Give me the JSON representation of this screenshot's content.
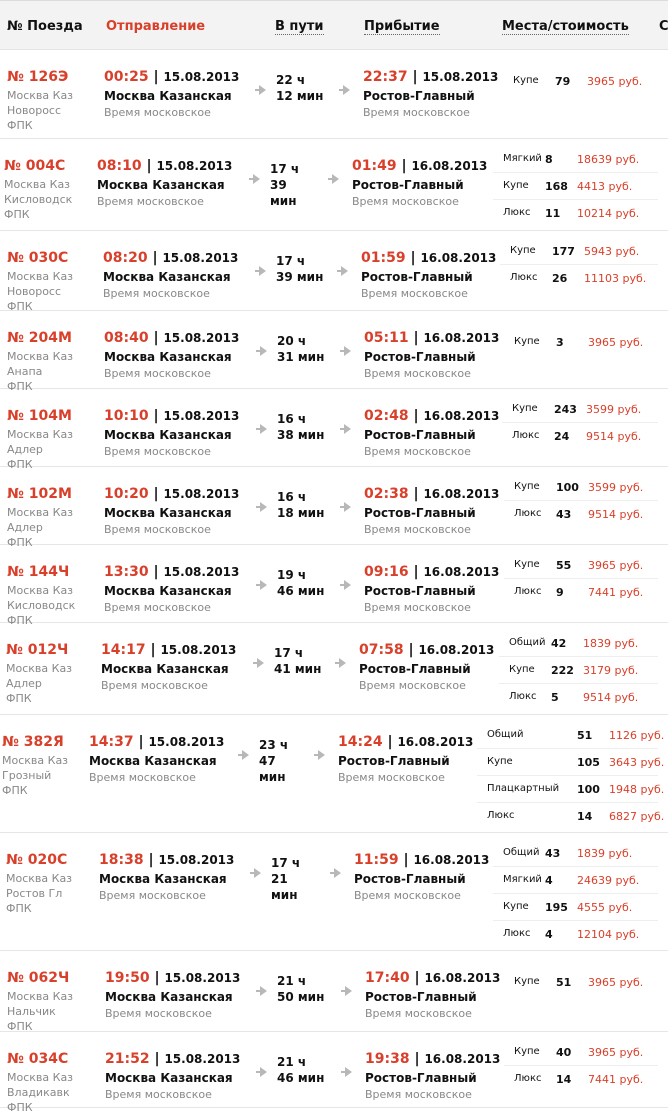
{
  "header": {
    "train": "№ Поезда",
    "departure": "Отправление",
    "travel": "В пути",
    "arrival": "Прибытие",
    "seats": "Места/стоимость",
    "extra": "С"
  },
  "colors": {
    "accent": "#d8402b",
    "muted": "#888888",
    "header_bg": "#f3f3f3"
  },
  "icons": {
    "duration_arrow": "arrow-right-icon"
  },
  "trains": [
    {
      "number": "№ 126Э",
      "route": [
        "Москва Каз",
        "Новоросс",
        "ФПК"
      ],
      "dep_time": "00:25",
      "dep_date": "15.08.2013",
      "dep_station": "Москва Казанская",
      "dep_tz": "Время московское",
      "travel": [
        "22 ч",
        "12 мин"
      ],
      "arr_time": "22:37",
      "arr_date": "15.08.2013",
      "arr_station": "Ростов-Главный",
      "arr_tz": "Время московское",
      "seats": [
        {
          "type": "Купе",
          "count": "79",
          "price": "3965 руб."
        }
      ]
    },
    {
      "number": "№ 004С",
      "route": [
        "Москва Каз",
        "Кисловодск",
        "ФПК"
      ],
      "dep_time": "08:10",
      "dep_date": "15.08.2013",
      "dep_station": "Москва Казанская",
      "dep_tz": "Время московское",
      "travel": [
        "17 ч",
        "39",
        "мин"
      ],
      "arr_time": "01:49",
      "arr_date": "16.08.2013",
      "arr_station": "Ростов-Главный",
      "arr_tz": "Время московское",
      "seats": [
        {
          "type": "Мягкий",
          "count": "8",
          "price": "18639 руб."
        },
        {
          "type": "Купе",
          "count": "168",
          "price": "4413 руб."
        },
        {
          "type": "Люкс",
          "count": "11",
          "price": "10214 руб."
        }
      ]
    },
    {
      "number": "№ 030С",
      "route": [
        "Москва Каз",
        "Новоросс",
        "ФПК"
      ],
      "dep_time": "08:20",
      "dep_date": "15.08.2013",
      "dep_station": "Москва Казанская",
      "dep_tz": "Время московское",
      "travel": [
        "17 ч",
        "39 мин"
      ],
      "arr_time": "01:59",
      "arr_date": "16.08.2013",
      "arr_station": "Ростов-Главный",
      "arr_tz": "Время московское",
      "seats": [
        {
          "type": "Купе",
          "count": "177",
          "price": "5943 руб."
        },
        {
          "type": "Люкс",
          "count": "26",
          "price": "11103 руб."
        }
      ]
    },
    {
      "number": "№ 204М",
      "route": [
        "Москва Каз",
        "Анапа",
        "ФПК"
      ],
      "dep_time": "08:40",
      "dep_date": "15.08.2013",
      "dep_station": "Москва Казанская",
      "dep_tz": "Время московское",
      "travel": [
        "20 ч",
        "31 мин"
      ],
      "arr_time": "05:11",
      "arr_date": "16.08.2013",
      "arr_station": "Ростов-Главный",
      "arr_tz": "Время московское",
      "seats": [
        {
          "type": "Купе",
          "count": "3",
          "price": "3965 руб."
        }
      ]
    },
    {
      "number": "№ 104М",
      "route": [
        "Москва Каз",
        "Адлер",
        "ФПК"
      ],
      "dep_time": "10:10",
      "dep_date": "15.08.2013",
      "dep_station": "Москва Казанская",
      "dep_tz": "Время московское",
      "travel": [
        "16 ч",
        "38 мин"
      ],
      "arr_time": "02:48",
      "arr_date": "16.08.2013",
      "arr_station": "Ростов-Главный",
      "arr_tz": "Время московское",
      "seats": [
        {
          "type": "Купе",
          "count": "243",
          "price": "3599 руб."
        },
        {
          "type": "Люкс",
          "count": "24",
          "price": "9514 руб."
        }
      ]
    },
    {
      "number": "№ 102М",
      "route": [
        "Москва Каз",
        "Адлер",
        "ФПК"
      ],
      "dep_time": "10:20",
      "dep_date": "15.08.2013",
      "dep_station": "Москва Казанская",
      "dep_tz": "Время московское",
      "travel": [
        "16 ч",
        "18 мин"
      ],
      "arr_time": "02:38",
      "arr_date": "16.08.2013",
      "arr_station": "Ростов-Главный",
      "arr_tz": "Время московское",
      "seats": [
        {
          "type": "Купе",
          "count": "100",
          "price": "3599 руб."
        },
        {
          "type": "Люкс",
          "count": "43",
          "price": "9514 руб."
        }
      ]
    },
    {
      "number": "№ 144Ч",
      "route": [
        "Москва Каз",
        "Кисловодск",
        "ФПК"
      ],
      "dep_time": "13:30",
      "dep_date": "15.08.2013",
      "dep_station": "Москва Казанская",
      "dep_tz": "Время московское",
      "travel": [
        "19 ч",
        "46 мин"
      ],
      "arr_time": "09:16",
      "arr_date": "16.08.2013",
      "arr_station": "Ростов-Главный",
      "arr_tz": "Время московское",
      "seats": [
        {
          "type": "Купе",
          "count": "55",
          "price": "3965 руб."
        },
        {
          "type": "Люкс",
          "count": "9",
          "price": "7441 руб."
        }
      ]
    },
    {
      "number": "№ 012Ч",
      "route": [
        "Москва Каз",
        "Адлер",
        "ФПК"
      ],
      "dep_time": "14:17",
      "dep_date": "15.08.2013",
      "dep_station": "Москва Казанская",
      "dep_tz": "Время московское",
      "travel": [
        "17 ч",
        "41 мин"
      ],
      "arr_time": "07:58",
      "arr_date": "16.08.2013",
      "arr_station": "Ростов-Главный",
      "arr_tz": "Время московское",
      "seats": [
        {
          "type": "Общий",
          "count": "42",
          "price": "1839 руб."
        },
        {
          "type": "Купе",
          "count": "222",
          "price": "3179 руб."
        },
        {
          "type": "Люкс",
          "count": "5",
          "price": "9514 руб."
        }
      ]
    },
    {
      "number": "№ 382Я",
      "route": [
        "Москва Каз",
        "Грозный",
        "ФПК"
      ],
      "dep_time": "14:37",
      "dep_date": "15.08.2013",
      "dep_station": "Москва Казанская",
      "dep_tz": "Время московское",
      "travel": [
        "23 ч",
        "47",
        "мин"
      ],
      "arr_time": "14:24",
      "arr_date": "16.08.2013",
      "arr_station": "Ростов-Главный",
      "arr_tz": "Время московское",
      "seats": [
        {
          "type": "Общий",
          "count": "51",
          "price": "1126 руб."
        },
        {
          "type": "Купе",
          "count": "105",
          "price": "3643 руб."
        },
        {
          "type": "Плацкартный",
          "count": "100",
          "price": "1948 руб."
        },
        {
          "type": "Люкс",
          "count": "14",
          "price": "6827 руб."
        }
      ]
    },
    {
      "number": "№ 020С",
      "route": [
        "Москва Каз",
        "Ростов Гл",
        "ФПК"
      ],
      "dep_time": "18:38",
      "dep_date": "15.08.2013",
      "dep_station": "Москва Казанская",
      "dep_tz": "Время московское",
      "travel": [
        "17 ч",
        "21",
        "мин"
      ],
      "arr_time": "11:59",
      "arr_date": "16.08.2013",
      "arr_station": "Ростов-Главный",
      "arr_tz": "Время московское",
      "seats": [
        {
          "type": "Общий",
          "count": "43",
          "price": "1839 руб."
        },
        {
          "type": "Мягкий",
          "count": "4",
          "price": "24639 руб."
        },
        {
          "type": "Купе",
          "count": "195",
          "price": "4555 руб."
        },
        {
          "type": "Люкс",
          "count": "4",
          "price": "12104 руб."
        }
      ]
    },
    {
      "number": "№ 062Ч",
      "route": [
        "Москва Каз",
        "Нальчик",
        "ФПК"
      ],
      "dep_time": "19:50",
      "dep_date": "15.08.2013",
      "dep_station": "Москва Казанская",
      "dep_tz": "Время московское",
      "travel": [
        "21 ч",
        "50 мин"
      ],
      "arr_time": "17:40",
      "arr_date": "16.08.2013",
      "arr_station": "Ростов-Главный",
      "arr_tz": "Время московское",
      "seats": [
        {
          "type": "Купе",
          "count": "51",
          "price": "3965 руб."
        }
      ]
    },
    {
      "number": "№ 034С",
      "route": [
        "Москва Каз",
        "Владикавк",
        "ФПК"
      ],
      "dep_time": "21:52",
      "dep_date": "15.08.2013",
      "dep_station": "Москва Казанская",
      "dep_tz": "Время московское",
      "travel": [
        "21 ч",
        "46 мин"
      ],
      "arr_time": "19:38",
      "arr_date": "16.08.2013",
      "arr_station": "Ростов-Главный",
      "arr_tz": "Время московское",
      "seats": [
        {
          "type": "Купе",
          "count": "40",
          "price": "3965 руб."
        },
        {
          "type": "Люкс",
          "count": "14",
          "price": "7441 руб."
        }
      ]
    }
  ]
}
